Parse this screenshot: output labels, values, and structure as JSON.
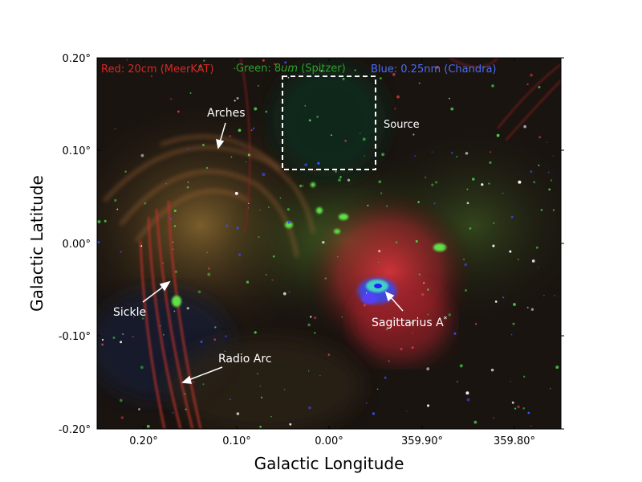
{
  "figure": {
    "xlabel": "Galactic Longitude",
    "ylabel": "Galactic Latitude",
    "xticks": [
      "0.20°",
      "0.10°",
      "0.00°",
      "359.90°",
      "359.80°"
    ],
    "yticks": [
      "0.20°",
      "0.10°",
      "0.00°",
      "-0.10°",
      "-0.20°"
    ]
  },
  "bands": [
    {
      "prefix": "Red: 20cm (MeerKAT)",
      "unit": "",
      "suffix": "",
      "color": "#d62728"
    },
    {
      "prefix": "Green: 8",
      "unit": "um",
      "suffix": " (Spitzer)",
      "color": "#2ca02c"
    },
    {
      "prefix": "Blue: 0.25nm (Chandra)",
      "unit": "",
      "suffix": "",
      "color": "#4a6cf7"
    }
  ],
  "annotations": {
    "arches": "Arches",
    "sickle": "Sickle",
    "radio_arc": "Radio Arc",
    "sgr_a": "Sagittarius A",
    "sgr_a_sup": "*",
    "source": "Source"
  },
  "colors": {
    "background_sky": "#1a1410",
    "radio_red": "#b8302a",
    "ir_green": "#3cbf3a",
    "xray_blue": "#2a3cff",
    "annotation": "#ffffff"
  }
}
